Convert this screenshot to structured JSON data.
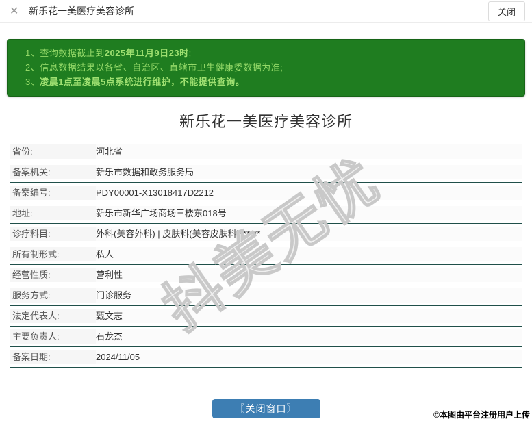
{
  "window": {
    "title": "新乐花一美医疗美容诊所",
    "close_icon": "✕",
    "close_button_label": "关闭"
  },
  "notice": {
    "item1": {
      "num": "1、",
      "text": "查询数据截止到",
      "bold": "2025年11月9日23时",
      "tail": ";"
    },
    "item2": {
      "num": "2、",
      "text": "信息数据结果以各省、自治区、直辖市卫生健康委数据为准;"
    },
    "item3": {
      "num": "3、",
      "bold": "凌晨1点至凌晨5点系统进行维护，不能提供查询。"
    }
  },
  "page_title": "新乐花一美医疗美容诊所",
  "details": {
    "rows": [
      {
        "label": "省份:",
        "value": "河北省"
      },
      {
        "label": "备案机关:",
        "value": "新乐市数据和政务服务局"
      },
      {
        "label": "备案编号:",
        "value": "PDY00001-X13018417D2212"
      },
      {
        "label": "地址:",
        "value": "新乐市新华广场商场三楼东018号"
      },
      {
        "label": "诊疗科目:",
        "value": "外科(美容外科) | 皮肤科(美容皮肤科)******"
      },
      {
        "label": "所有制形式:",
        "value": "私人"
      },
      {
        "label": "经营性质:",
        "value": "营利性"
      },
      {
        "label": "服务方式:",
        "value": "门诊服务"
      },
      {
        "label": "法定代表人:",
        "value": "甄文志"
      },
      {
        "label": "主要负责人:",
        "value": "石龙杰"
      },
      {
        "label": "备案日期:",
        "value": "2024/11/05"
      }
    ]
  },
  "watermark": "抖美无忧",
  "footer": {
    "close_window_label": "〖关闭窗口〗",
    "copyright": "©本图由平台注册用户上传"
  },
  "colors": {
    "notice_bg": "#1f7d20",
    "notice_text": "#94d968",
    "table_divider": "#20504a",
    "button_blue": "#3d7eb3"
  }
}
